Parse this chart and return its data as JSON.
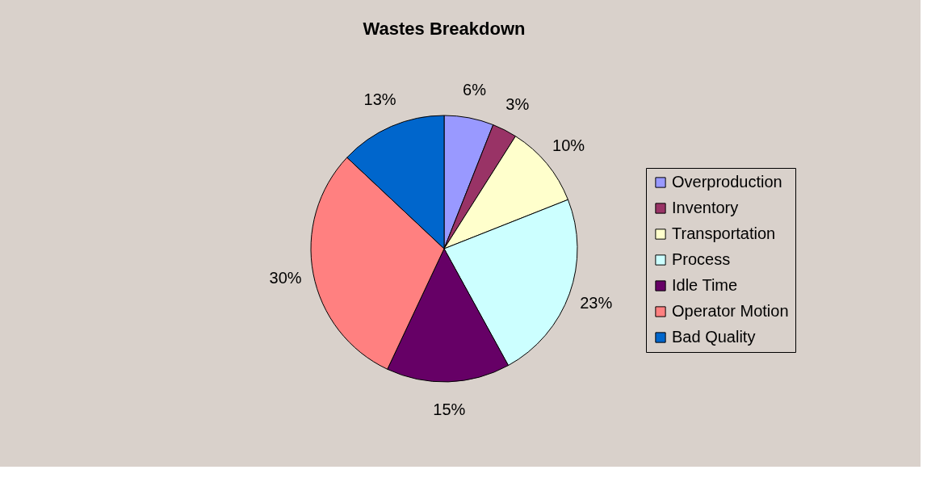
{
  "chart_data": {
    "type": "pie",
    "title": "Wastes Breakdown",
    "categories": [
      "Overproduction",
      "Inventory",
      "Transportation",
      "Process",
      "Idle Time",
      "Operator Motion",
      "Bad Quality"
    ],
    "values": [
      6,
      3,
      10,
      23,
      15,
      30,
      13
    ],
    "colors": [
      "#9999ff",
      "#993366",
      "#ffffcc",
      "#ccffff",
      "#660066",
      "#ff8080",
      "#0066cc"
    ],
    "value_labels": [
      "6%",
      "3%",
      "10%",
      "23%",
      "15%",
      "30%",
      "13%"
    ],
    "legend": "right"
  }
}
